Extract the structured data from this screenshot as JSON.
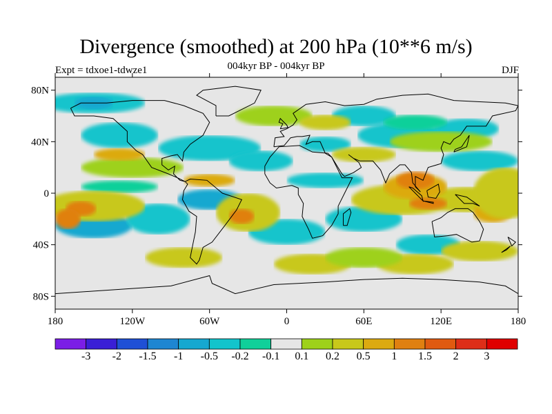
{
  "title": "Divergence (smoothed) at 200 hPa (10**6 m/s)",
  "subtitle": "004kyr BP - 004kyr BP",
  "left_label": "Expt = tdxoe1-tdwze1",
  "right_label": "DJF",
  "map": {
    "projection": "cylindrical equidistant",
    "lon_range": [
      -180,
      180
    ],
    "lat_range": [
      -90,
      90
    ],
    "x_ticks": [
      "180",
      "120W",
      "60W",
      "0",
      "60E",
      "120E",
      "180"
    ],
    "y_ticks": [
      "80N",
      "40N",
      "0",
      "40S",
      "80S"
    ]
  },
  "colorbar": {
    "labels": [
      "-3",
      "-2",
      "-1.5",
      "-1",
      "-0.5",
      "-0.2",
      "-0.1",
      "0.1",
      "0.2",
      "0.5",
      "1",
      "1.5",
      "2",
      "3"
    ],
    "colors": [
      "#7b1ee6",
      "#3a1fd6",
      "#1f50d6",
      "#1e86d2",
      "#16a8d0",
      "#12c4cc",
      "#10d09a",
      "#e6e6e6",
      "#9ed11a",
      "#c8c81a",
      "#dcaa10",
      "#e08010",
      "#e05a10",
      "#de2e18",
      "#e00000"
    ]
  },
  "colors": {
    "background": "#e6e6e6",
    "coast": "#000000"
  }
}
